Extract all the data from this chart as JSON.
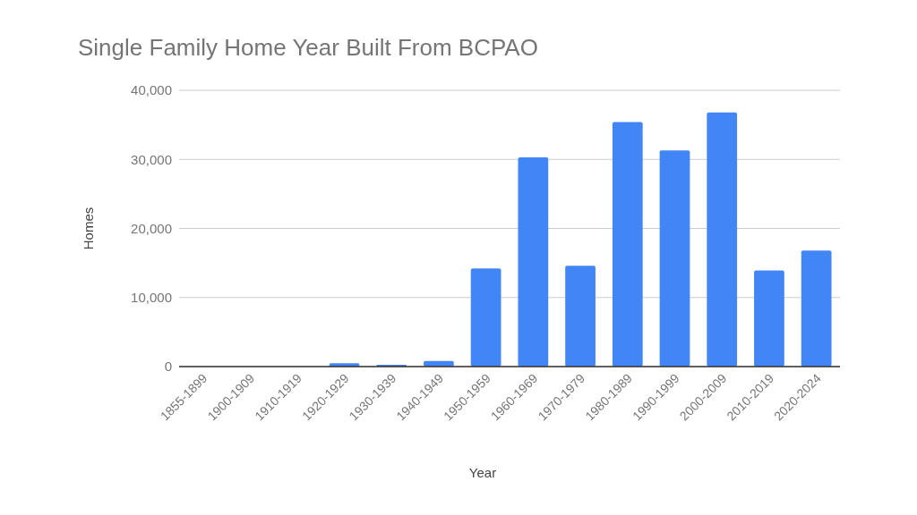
{
  "chart_data": {
    "type": "bar",
    "title": "Single Family Home Year Built From BCPAO",
    "xlabel": "Year",
    "ylabel": "Homes",
    "categories": [
      "1855-1899",
      "1900-1909",
      "1910-1919",
      "1920-1929",
      "1930-1939",
      "1940-1949",
      "1950-1959",
      "1960-1969",
      "1970-1979",
      "1980-1989",
      "1990-1999",
      "2000-2009",
      "2010-2019",
      "2020-2024"
    ],
    "values": [
      0,
      0,
      0,
      500,
      250,
      800,
      14200,
      30300,
      14600,
      35400,
      31300,
      36800,
      13900,
      16800
    ],
    "color": "#4285f4",
    "ylim": [
      0,
      40000
    ],
    "yticks": [
      0,
      {
        "value": 10000,
        "label": "10,000"
      },
      {
        "value": 20000,
        "label": "20,000"
      },
      {
        "value": 30000,
        "label": "30,000"
      },
      {
        "value": 40000,
        "label": "40,000"
      }
    ],
    "grid": true
  }
}
